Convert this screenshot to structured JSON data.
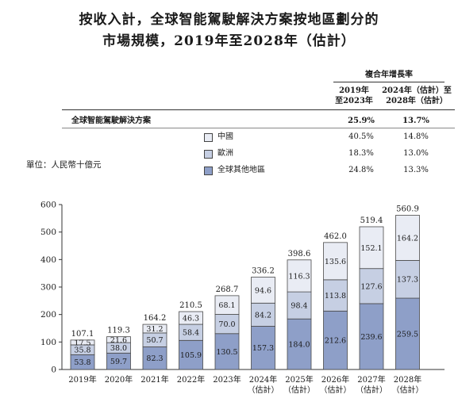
{
  "header": {
    "title_line1": "按收入計，全球智能駕駛解決方案按地區劃分的",
    "title_line2": "市場規模，2019年至2028年（估計）"
  },
  "cagr_table": {
    "group_header": "複合年增長率",
    "col1_header_l1": "2019年",
    "col1_header_l2": "至2023年",
    "col2_header_l1": "2024年（估計）至",
    "col2_header_l2": "2028年（估計）",
    "total_row": {
      "label": "全球智能駕駛解決方案",
      "c1": "25.9%",
      "c2": "13.7%"
    },
    "rows": [
      {
        "label": "中國",
        "c1": "40.5%",
        "c2": "14.8%",
        "color": "#e9ecf4"
      },
      {
        "label": "歐洲",
        "c1": "18.3%",
        "c2": "13.0%",
        "color": "#c6cfe3"
      },
      {
        "label": "全球其他地區",
        "c1": "24.8%",
        "c2": "13.3%",
        "color": "#8e9fc8"
      }
    ]
  },
  "unit_label": "單位：人民幣十億元",
  "chart_data": {
    "type": "bar",
    "stacked": true,
    "ylim": [
      0,
      600
    ],
    "yticks": [
      0,
      100,
      200,
      300,
      400,
      500,
      600
    ],
    "categories": [
      {
        "l1": "2019年",
        "l2": ""
      },
      {
        "l1": "2020年",
        "l2": ""
      },
      {
        "l1": "2021年",
        "l2": ""
      },
      {
        "l1": "2022年",
        "l2": ""
      },
      {
        "l1": "2023年",
        "l2": ""
      },
      {
        "l1": "2024年",
        "l2": "（估計）"
      },
      {
        "l1": "2025年",
        "l2": "（估計）"
      },
      {
        "l1": "2026年",
        "l2": "（估計）"
      },
      {
        "l1": "2027年",
        "l2": "（估計）"
      },
      {
        "l1": "2028年",
        "l2": "（估計）"
      }
    ],
    "series": [
      {
        "name": "全球其他地區",
        "color": "#8e9fc8",
        "values": [
          53.8,
          59.7,
          82.3,
          105.9,
          130.5,
          157.3,
          184.0,
          212.6,
          239.6,
          259.5
        ],
        "labels": [
          "53.8",
          "59.7",
          "82.3",
          "105.9",
          "130.5",
          "157.3",
          "184.0",
          "212.6",
          "239.6",
          "259.5"
        ]
      },
      {
        "name": "歐洲",
        "color": "#c6cfe3",
        "values": [
          35.8,
          38.0,
          50.7,
          58.4,
          70.0,
          84.2,
          98.4,
          113.8,
          127.6,
          137.3
        ],
        "labels": [
          "35.8",
          "38.0",
          "50.7",
          "58.4",
          "70.0",
          "84.2",
          "98.4",
          "113.8",
          "127.6",
          "137.3"
        ]
      },
      {
        "name": "中國",
        "color": "#e9ecf4",
        "values": [
          17.5,
          21.6,
          31.2,
          46.3,
          68.1,
          94.6,
          116.3,
          135.6,
          152.1,
          164.2
        ],
        "labels": [
          "17.5",
          "21.6",
          "31.2",
          "46.3",
          "68.1",
          "94.6",
          "116.3",
          "135.6",
          "152.1",
          "164.2"
        ]
      }
    ],
    "totals": [
      107.1,
      119.3,
      164.2,
      210.5,
      268.7,
      336.2,
      398.6,
      462.0,
      519.4,
      560.9
    ],
    "total_labels": [
      "107.1",
      "119.3",
      "164.2",
      "210.5",
      "268.7",
      "336.2",
      "398.6",
      "462.0",
      "519.4",
      "560.9"
    ]
  }
}
